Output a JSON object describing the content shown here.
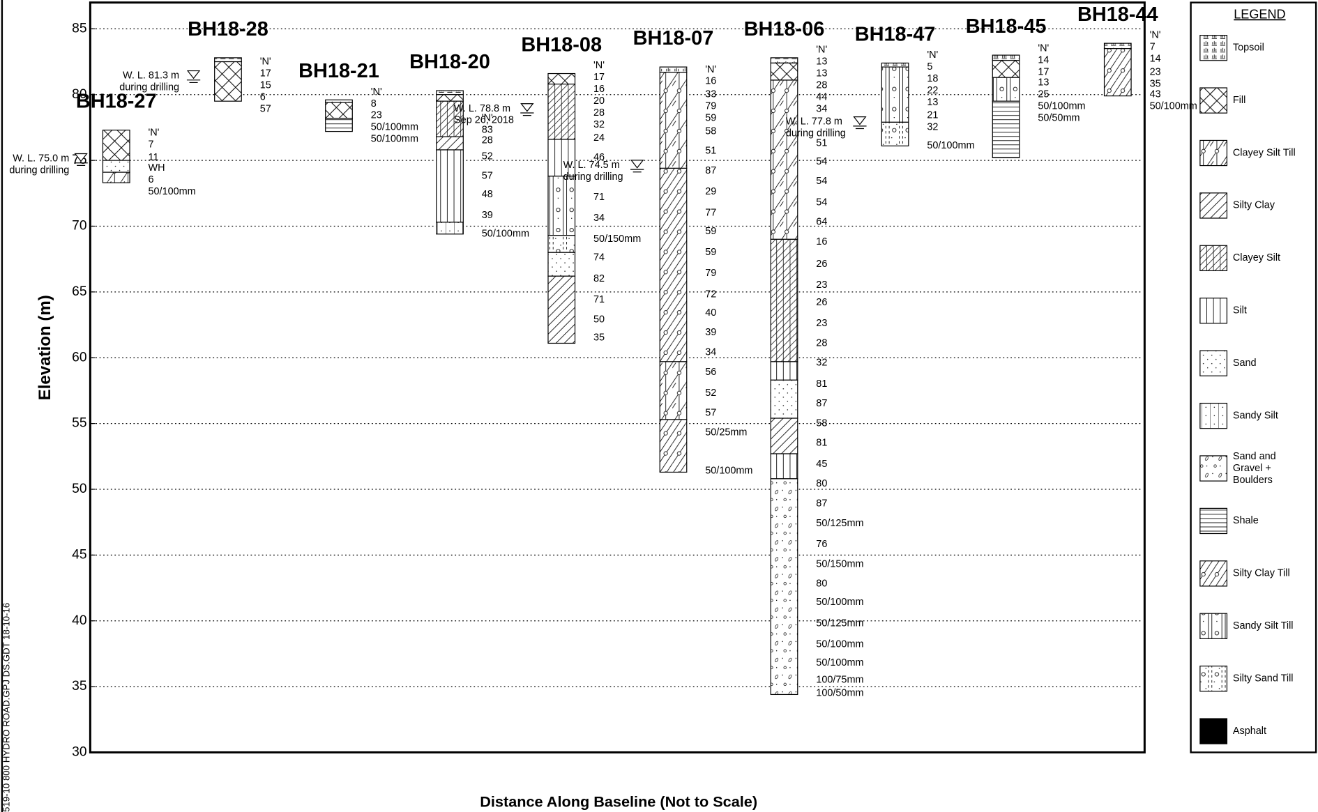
{
  "axis": {
    "title": "Elevation (m)",
    "ylim": [
      30,
      87
    ],
    "yticks": [
      30,
      35,
      40,
      45,
      50,
      55,
      60,
      65,
      70,
      75,
      80,
      85
    ]
  },
  "x_axis_title": "Distance Along Baseline (Not to Scale)",
  "side_note": "519-10 800 HYDRO ROAD.GPJ  DS.GDT  18-10-16",
  "n_header": "'N'",
  "legend": {
    "title": "LEGEND",
    "items": [
      "Topsoil",
      "Fill",
      "Clayey Silt Till",
      "Silty Clay",
      "Clayey Silt",
      "Silt",
      "Sand",
      "Sandy Silt",
      "Sand and Gravel + Boulders",
      "Shale",
      "Silty Clay Till",
      "Sandy Silt Till",
      "Silty Sand Till",
      "Asphalt"
    ]
  },
  "boreholes": [
    {
      "name": "BH18-27",
      "water_level": {
        "label": "W. L. 75.0 m",
        "note": "during drilling",
        "elevation": 75.0
      },
      "layers": [
        {
          "soil": 1,
          "top": 77.3,
          "bottom": 75.0
        },
        {
          "soil": 6,
          "top": 75.0,
          "bottom": 74.1
        },
        {
          "soil": 2,
          "top": 74.1,
          "bottom": 73.3
        }
      ],
      "n_values": [
        {
          "label": "7",
          "at": 76.2
        },
        {
          "label": "11",
          "at": 75.2
        },
        {
          "label": "WH",
          "at": 74.4
        },
        {
          "label": "6",
          "at": 73.5
        },
        {
          "label": "50/100mm",
          "at": 72.6
        }
      ]
    },
    {
      "name": "BH18-28",
      "water_level": {
        "label": "W. L. 81.3 m",
        "note": "during drilling",
        "elevation": 81.3
      },
      "layers": [
        {
          "soil": 0,
          "top": 82.8,
          "bottom": 82.5
        },
        {
          "soil": 1,
          "top": 82.5,
          "bottom": 79.5
        }
      ],
      "n_values": [
        {
          "label": "17",
          "at": 81.6
        },
        {
          "label": "15",
          "at": 80.7
        },
        {
          "label": "6",
          "at": 79.8
        },
        {
          "label": "57",
          "at": 78.9
        }
      ]
    },
    {
      "name": "BH18-21",
      "layers": [
        {
          "soil": 0,
          "top": 79.6,
          "bottom": 79.4
        },
        {
          "soil": 1,
          "top": 79.4,
          "bottom": 78.2
        },
        {
          "soil": 9,
          "top": 78.2,
          "bottom": 77.2
        }
      ],
      "n_values": [
        {
          "label": "8",
          "at": 79.3
        },
        {
          "label": "23",
          "at": 78.4
        },
        {
          "label": "50/100mm",
          "at": 77.5
        },
        {
          "label": "50/100mm",
          "at": 76.6
        }
      ]
    },
    {
      "name": "BH18-20",
      "water_level": {
        "label": "W. L. 78.8 m",
        "note": "Sep 26, 2018",
        "elevation": 78.8
      },
      "layers": [
        {
          "soil": 0,
          "top": 80.3,
          "bottom": 80.0
        },
        {
          "soil": 1,
          "top": 80.0,
          "bottom": 79.5
        },
        {
          "soil": 4,
          "top": 79.5,
          "bottom": 76.8
        },
        {
          "soil": 3,
          "top": 76.8,
          "bottom": 75.8
        },
        {
          "soil": 5,
          "top": 75.8,
          "bottom": 70.3
        },
        {
          "soil": 7,
          "top": 70.3,
          "bottom": 69.4
        }
      ],
      "n_values": [
        {
          "label": "83",
          "at": 77.3
        },
        {
          "label": "28",
          "at": 76.5
        },
        {
          "label": "52",
          "at": 75.3
        },
        {
          "label": "57",
          "at": 73.8
        },
        {
          "label": "48",
          "at": 72.4
        },
        {
          "label": "39",
          "at": 70.8
        },
        {
          "label": "50/100mm",
          "at": 69.4
        }
      ]
    },
    {
      "name": "BH18-08",
      "water_level": {
        "label": "W. L. 74.5 m",
        "note": "during drilling",
        "elevation": 74.5
      },
      "layers": [
        {
          "soil": 1,
          "top": 81.6,
          "bottom": 80.8
        },
        {
          "soil": 4,
          "top": 80.8,
          "bottom": 76.6
        },
        {
          "soil": 5,
          "top": 76.6,
          "bottom": 73.8
        },
        {
          "soil": 11,
          "top": 73.8,
          "bottom": 69.3
        },
        {
          "soil": 12,
          "top": 69.3,
          "bottom": 68.0
        },
        {
          "soil": 6,
          "top": 68.0,
          "bottom": 66.2
        },
        {
          "soil": 3,
          "top": 66.2,
          "bottom": 61.1
        }
      ],
      "n_values": [
        {
          "label": "17",
          "at": 81.3
        },
        {
          "label": "16",
          "at": 80.4
        },
        {
          "label": "20",
          "at": 79.5
        },
        {
          "label": "28",
          "at": 78.6
        },
        {
          "label": "32",
          "at": 77.7
        },
        {
          "label": "24",
          "at": 76.7
        },
        {
          "label": "46",
          "at": 75.2
        },
        {
          "label": "71",
          "at": 72.2
        },
        {
          "label": "34",
          "at": 70.6
        },
        {
          "label": "50/150mm",
          "at": 69.0
        },
        {
          "label": "74",
          "at": 67.6
        },
        {
          "label": "82",
          "at": 66.0
        },
        {
          "label": "71",
          "at": 64.4
        },
        {
          "label": "50",
          "at": 62.9
        },
        {
          "label": "35",
          "at": 61.5
        }
      ]
    },
    {
      "name": "BH18-07",
      "layers": [
        {
          "soil": 0,
          "top": 82.1,
          "bottom": 81.7
        },
        {
          "soil": 2,
          "top": 81.7,
          "bottom": 74.4
        },
        {
          "soil": 10,
          "top": 74.4,
          "bottom": 59.7
        },
        {
          "soil": 2,
          "top": 59.7,
          "bottom": 55.3
        },
        {
          "soil": 10,
          "top": 55.3,
          "bottom": 51.3
        }
      ],
      "n_values": [
        {
          "label": "16",
          "at": 81.0
        },
        {
          "label": "33",
          "at": 80.0
        },
        {
          "label": "79",
          "at": 79.1
        },
        {
          "label": "59",
          "at": 78.2
        },
        {
          "label": "58",
          "at": 77.2
        },
        {
          "label": "51",
          "at": 75.7
        },
        {
          "label": "87",
          "at": 74.2
        },
        {
          "label": "29",
          "at": 72.6
        },
        {
          "label": "77",
          "at": 71.0
        },
        {
          "label": "59",
          "at": 69.6
        },
        {
          "label": "59",
          "at": 68.0
        },
        {
          "label": "79",
          "at": 66.4
        },
        {
          "label": "72",
          "at": 64.8
        },
        {
          "label": "40",
          "at": 63.4
        },
        {
          "label": "39",
          "at": 61.9
        },
        {
          "label": "34",
          "at": 60.4
        },
        {
          "label": "56",
          "at": 58.9
        },
        {
          "label": "52",
          "at": 57.3
        },
        {
          "label": "57",
          "at": 55.8
        },
        {
          "label": "50/25mm",
          "at": 54.3
        },
        {
          "label": "50/100mm",
          "at": 51.4
        }
      ]
    },
    {
      "name": "BH18-06",
      "water_level": {
        "label": "W. L. 77.8 m",
        "note": "during drilling",
        "elevation": 77.8
      },
      "layers": [
        {
          "soil": 0,
          "top": 82.8,
          "bottom": 82.4
        },
        {
          "soil": 1,
          "top": 82.4,
          "bottom": 81.1
        },
        {
          "soil": 2,
          "top": 81.1,
          "bottom": 69.0
        },
        {
          "soil": 4,
          "top": 69.0,
          "bottom": 59.7
        },
        {
          "soil": 5,
          "top": 59.7,
          "bottom": 58.3
        },
        {
          "soil": 6,
          "top": 58.3,
          "bottom": 55.4
        },
        {
          "soil": 3,
          "top": 55.4,
          "bottom": 52.7
        },
        {
          "soil": 5,
          "top": 52.7,
          "bottom": 50.8
        },
        {
          "soil": 8,
          "top": 50.8,
          "bottom": 34.4
        }
      ],
      "n_values": [
        {
          "label": "13",
          "at": 82.5
        },
        {
          "label": "13",
          "at": 81.6
        },
        {
          "label": "28",
          "at": 80.7
        },
        {
          "label": "44",
          "at": 79.8
        },
        {
          "label": "34",
          "at": 78.9
        },
        {
          "label": "51",
          "at": 76.3
        },
        {
          "label": "54",
          "at": 74.9
        },
        {
          "label": "54",
          "at": 73.4
        },
        {
          "label": "54",
          "at": 71.8
        },
        {
          "label": "64",
          "at": 70.3
        },
        {
          "label": "16",
          "at": 68.8
        },
        {
          "label": "26",
          "at": 67.1
        },
        {
          "label": "23",
          "at": 65.5
        },
        {
          "label": "26",
          "at": 64.2
        },
        {
          "label": "23",
          "at": 62.6
        },
        {
          "label": "28",
          "at": 61.1
        },
        {
          "label": "32",
          "at": 59.6
        },
        {
          "label": "81",
          "at": 58.0
        },
        {
          "label": "87",
          "at": 56.5
        },
        {
          "label": "58",
          "at": 55.0
        },
        {
          "label": "81",
          "at": 53.5
        },
        {
          "label": "45",
          "at": 51.9
        },
        {
          "label": "80",
          "at": 50.4
        },
        {
          "label": "87",
          "at": 48.9
        },
        {
          "label": "50/125mm",
          "at": 47.4
        },
        {
          "label": "76",
          "at": 45.8
        },
        {
          "label": "50/150mm",
          "at": 44.3
        },
        {
          "label": "80",
          "at": 42.8
        },
        {
          "label": "50/100mm",
          "at": 41.4
        },
        {
          "label": "50/125mm",
          "at": 39.8
        },
        {
          "label": "50/100mm",
          "at": 38.2
        },
        {
          "label": "50/100mm",
          "at": 36.8
        },
        {
          "label": "100/75mm",
          "at": 35.5
        },
        {
          "label": "100/50mm",
          "at": 34.5
        }
      ]
    },
    {
      "name": "BH18-47",
      "layers": [
        {
          "soil": 0,
          "top": 82.4,
          "bottom": 82.1
        },
        {
          "soil": 11,
          "top": 82.1,
          "bottom": 77.9
        },
        {
          "soil": 12,
          "top": 77.9,
          "bottom": 76.1
        }
      ],
      "n_values": [
        {
          "label": "5",
          "at": 82.1
        },
        {
          "label": "18",
          "at": 81.2
        },
        {
          "label": "22",
          "at": 80.3
        },
        {
          "label": "13",
          "at": 79.4
        },
        {
          "label": "21",
          "at": 78.4
        },
        {
          "label": "32",
          "at": 77.5
        },
        {
          "label": "50/100mm",
          "at": 76.1
        }
      ]
    },
    {
      "name": "BH18-45",
      "layers": [
        {
          "soil": 0,
          "top": 83.0,
          "bottom": 82.6
        },
        {
          "soil": 1,
          "top": 82.6,
          "bottom": 81.3
        },
        {
          "soil": 11,
          "top": 81.3,
          "bottom": 79.5
        },
        {
          "soil": 9,
          "top": 79.5,
          "bottom": 75.2
        }
      ],
      "n_values": [
        {
          "label": "14",
          "at": 82.6
        },
        {
          "label": "17",
          "at": 81.7
        },
        {
          "label": "13",
          "at": 80.9
        },
        {
          "label": "25",
          "at": 80.0
        },
        {
          "label": "50/100mm",
          "at": 79.1
        },
        {
          "label": "50/50mm",
          "at": 78.2
        }
      ]
    },
    {
      "name": "BH18-44",
      "layers": [
        {
          "soil": 0,
          "top": 83.9,
          "bottom": 83.5
        },
        {
          "soil": 10,
          "top": 83.5,
          "bottom": 79.9
        }
      ],
      "n_values": [
        {
          "label": "7",
          "at": 83.6
        },
        {
          "label": "14",
          "at": 82.7
        },
        {
          "label": "23",
          "at": 81.7
        },
        {
          "label": "35",
          "at": 80.8
        },
        {
          "label": "43",
          "at": 80.0
        },
        {
          "label": "50/100mm",
          "at": 79.1
        }
      ]
    }
  ]
}
